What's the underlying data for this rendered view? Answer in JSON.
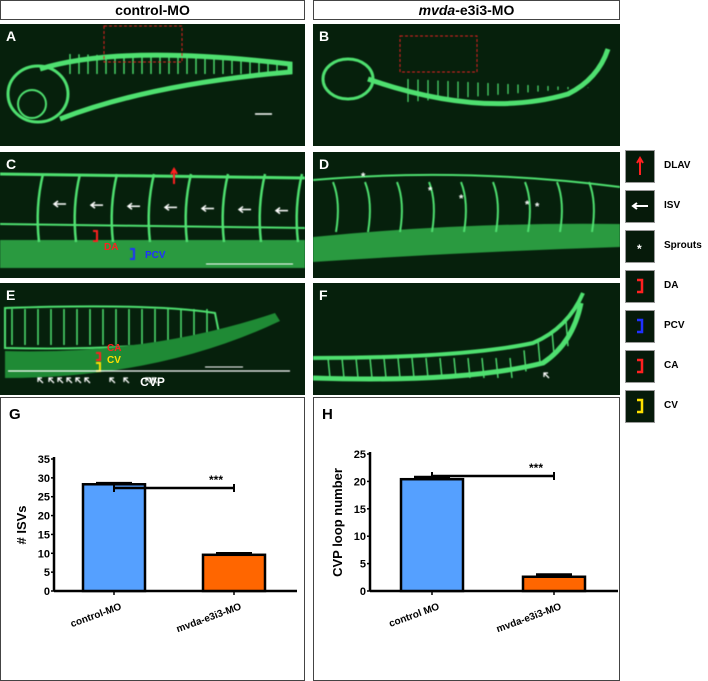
{
  "headers": {
    "left": "control-MO",
    "right_italic": "mvda",
    "right_rest": "-e3i3-MO"
  },
  "panels": {
    "A": "A",
    "B": "B",
    "C": "C",
    "D": "D",
    "E": "E",
    "F": "F",
    "G": "G",
    "H": "H"
  },
  "annotations": {
    "DA": "DA",
    "PCV": "PCV",
    "CA": "CA",
    "CV": "CV",
    "CVP": "CVP",
    "sprout": "*"
  },
  "legend": [
    {
      "label": "DLAV",
      "symbol": "red-up-arrow",
      "color": "#ff2020"
    },
    {
      "label": "ISV",
      "symbol": "white-left-arrow",
      "color": "#ffffff"
    },
    {
      "label": "Sprouts",
      "symbol": "asterisk",
      "color": "#ffffff"
    },
    {
      "label": "DA",
      "symbol": "bracket",
      "color": "#ff2020"
    },
    {
      "label": "PCV",
      "symbol": "bracket",
      "color": "#2030ff"
    },
    {
      "label": "CA",
      "symbol": "bracket",
      "color": "#ff2020"
    },
    {
      "label": "CV",
      "symbol": "bracket",
      "color": "#ffe000"
    }
  ],
  "chart_data": [
    {
      "type": "bar",
      "panel": "G",
      "categories": [
        "control-MO",
        "mvda-e3i3-MO"
      ],
      "values": [
        28.3,
        9.6
      ],
      "errors": [
        0.3,
        0.4
      ],
      "colors": [
        "#55a0ff",
        "#ff6600"
      ],
      "ylabel": "# ISVs",
      "ylim": [
        0,
        35
      ],
      "yticks": [
        0,
        5,
        10,
        15,
        20,
        25,
        30,
        35
      ],
      "significance": "***"
    },
    {
      "type": "bar",
      "panel": "H",
      "categories": [
        "control MO",
        "mvda-e3i3-MO"
      ],
      "values": [
        20.4,
        2.6
      ],
      "errors": [
        0.4,
        0.4
      ],
      "colors": [
        "#55a0ff",
        "#ff6600"
      ],
      "ylabel": "CVP loop number",
      "ylim": [
        0,
        25
      ],
      "yticks": [
        0,
        5,
        10,
        15,
        20,
        25
      ],
      "significance": "***"
    }
  ]
}
